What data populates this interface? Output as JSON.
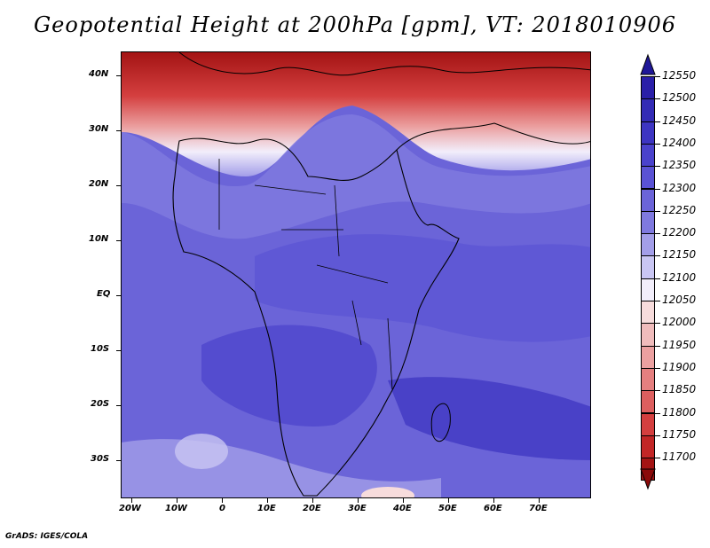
{
  "title": "Geopotential Height at 200hPa [gpm], VT: 2018010906",
  "credit": "GrADS: IGES/COLA",
  "map": {
    "lat_labels": [
      "40N",
      "30N",
      "20N",
      "10N",
      "EQ",
      "10S",
      "20S",
      "30S"
    ],
    "lon_labels": [
      "20W",
      "10W",
      "0",
      "10E",
      "20E",
      "30E",
      "40E",
      "50E",
      "60E",
      "70E"
    ],
    "lat_range": [
      -37,
      45
    ],
    "lon_range": [
      -22,
      80
    ]
  },
  "colorbar": {
    "levels": [
      "12550",
      "12500",
      "12450",
      "12400",
      "12350",
      "12300",
      "12250",
      "12200",
      "12150",
      "12100",
      "12050",
      "12000",
      "11950",
      "11900",
      "11850",
      "11800",
      "11750",
      "11700"
    ],
    "colors": [
      "#2a1fa8",
      "#332bb5",
      "#3d35c2",
      "#4a42cc",
      "#5a52d4",
      "#6b64d8",
      "#7f79df",
      "#a39ee9",
      "#c9c6f3",
      "#f2eefb",
      "#f7dcdc",
      "#f0bcbc",
      "#eba0a0",
      "#e57f7f",
      "#dd5f5f",
      "#d43f3f",
      "#c22626",
      "#a41414"
    ]
  }
}
